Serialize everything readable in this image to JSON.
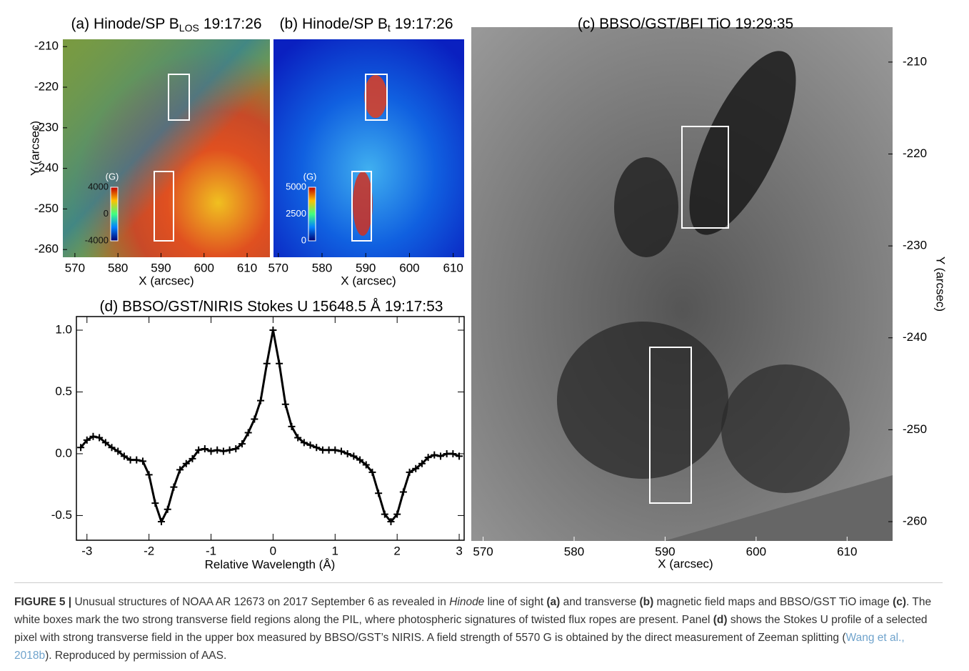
{
  "panels": [
    {
      "title": "(a) Hinode/SP B",
      "title_sub": "LOS",
      "title_time": "19:17:26",
      "xlabel": "X (arcsec)",
      "ylabel": "Y (arcsec)",
      "xlim": [
        567.2,
        615.3
      ],
      "ylim": [
        -208.2,
        -261.9
      ],
      "xticks": [
        570,
        580,
        590,
        600,
        610
      ],
      "yticks": [
        -210,
        -220,
        -230,
        -240,
        -250,
        -260
      ],
      "colorbar": {
        "unit": "(G)",
        "lim": [
          -4000,
          4000
        ],
        "ticks": [
          4000,
          0,
          -4000
        ]
      }
    },
    {
      "title": "(b) Hinode/SP B",
      "title_sub": "t",
      "title_time": "19:17:26",
      "xlabel": "X (arcsec)",
      "xlim": [
        568.9,
        612.5
      ],
      "xticks": [
        570,
        580,
        590,
        600,
        610
      ],
      "colorbar": {
        "unit": "(G)",
        "lim": [
          0,
          5000
        ],
        "ticks": [
          5000,
          2500,
          0
        ]
      }
    },
    {
      "title": "(c) BBSO/GST/BFI TiO 19:29:35",
      "xlabel": "X (arcsec)",
      "ylabel": "Y (arcsec)",
      "xlim": [
        568.7,
        615.0
      ],
      "ylim": [
        -206.2,
        -262.1
      ],
      "xticks": [
        570,
        580,
        590,
        600,
        610
      ],
      "yticks": [
        -210,
        -220,
        -230,
        -240,
        -250,
        -260
      ]
    }
  ],
  "chart_data": {
    "type": "line",
    "title": "(d) BBSO/GST/NIRIS Stokes U 15648.5 Å 19:17:53",
    "xlabel": "Relative Wavelength (Å)",
    "x": [
      -3.1,
      -3.0,
      -2.9,
      -2.8,
      -2.7,
      -2.6,
      -2.5,
      -2.4,
      -2.3,
      -2.2,
      -2.1,
      -2.0,
      -1.9,
      -1.8,
      -1.7,
      -1.6,
      -1.5,
      -1.4,
      -1.3,
      -1.2,
      -1.1,
      -1.0,
      -0.9,
      -0.8,
      -0.7,
      -0.6,
      -0.5,
      -0.4,
      -0.3,
      -0.2,
      -0.1,
      0,
      0.1,
      0.2,
      0.3,
      0.4,
      0.5,
      0.6,
      0.7,
      0.8,
      0.9,
      1.0,
      1.1,
      1.2,
      1.3,
      1.4,
      1.5,
      1.6,
      1.7,
      1.8,
      1.9,
      2.0,
      2.1,
      2.2,
      2.3,
      2.4,
      2.5,
      2.6,
      2.7,
      2.8,
      2.9,
      3.0
    ],
    "series": [
      {
        "color": "#000000",
        "values": [
          0.05,
          0.11,
          0.14,
          0.13,
          0.09,
          0.05,
          0.02,
          -0.02,
          -0.05,
          -0.05,
          -0.06,
          -0.17,
          -0.4,
          -0.55,
          -0.45,
          -0.27,
          -0.13,
          -0.08,
          -0.04,
          0.03,
          0.04,
          0.02,
          0.03,
          0.02,
          0.03,
          0.04,
          0.08,
          0.17,
          0.28,
          0.43,
          0.73,
          1.0,
          0.73,
          0.4,
          0.22,
          0.13,
          0.09,
          0.07,
          0.05,
          0.03,
          0.03,
          0.03,
          0.02,
          0.0,
          -0.02,
          -0.05,
          -0.09,
          -0.15,
          -0.32,
          -0.49,
          -0.55,
          -0.49,
          -0.31,
          -0.15,
          -0.12,
          -0.08,
          -0.03,
          -0.01,
          -0.02,
          0.0,
          0.0,
          -0.02
        ]
      }
    ],
    "xlim": [
      -3.17,
      3.08
    ],
    "ylim": [
      -0.7,
      1.11
    ],
    "xticks": [
      -3,
      -2,
      -1,
      0,
      1,
      2,
      3
    ],
    "yticks": [
      {
        "value": 1,
        "label": "1.0"
      },
      0.5,
      {
        "value": 0,
        "label": "0.0"
      },
      -0.5
    ]
  },
  "caption": [
    {
      "text": "FIGURE 5 |",
      "style": "bold"
    },
    {
      "text": " Unusual structures of NOAA AR 12673 on 2017 September 6 as revealed in "
    },
    {
      "text": "Hinode",
      "style": "italic"
    },
    {
      "text": " line of sight "
    },
    {
      "text": "(a)",
      "style": "bold"
    },
    {
      "text": " and transverse "
    },
    {
      "text": "(b)",
      "style": "bold"
    },
    {
      "text": " magnetic field maps and BBSO/GST TiO image "
    },
    {
      "text": "(c)",
      "style": "bold"
    },
    {
      "text": ". The white boxes mark the two strong transverse field regions along the PIL, where photospheric signatures of twisted flux ropes are present. Panel "
    },
    {
      "text": "(d)",
      "style": "bold"
    },
    {
      "text": " shows the Stokes U profile of a selected pixel with strong transverse field in the upper box measured by BBSO/GST’s NIRIS. A field strength of 5570 G is obtained by the direct measurement of Zeeman splitting ("
    },
    {
      "text": "Wang et al., 2018b",
      "style": "link"
    },
    {
      "text": "). Reproduced by permission of AAS."
    }
  ]
}
